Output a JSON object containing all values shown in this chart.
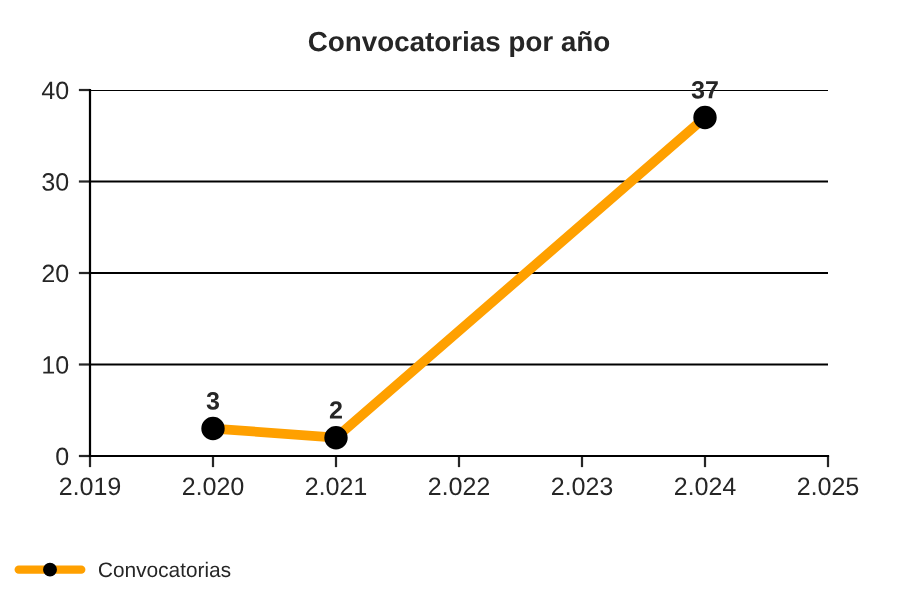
{
  "chart_data": {
    "type": "line",
    "title": "Convocatorias por año",
    "x": [
      2020,
      2021,
      2024
    ],
    "series": [
      {
        "name": "Convocatorias",
        "color": "#ffa000",
        "values": [
          3,
          2,
          37
        ]
      }
    ],
    "xlim": [
      2019,
      2025
    ],
    "xticks": [
      {
        "value": 2019,
        "label": "2.019"
      },
      {
        "value": 2020,
        "label": "2.020"
      },
      {
        "value": 2021,
        "label": "2.021"
      },
      {
        "value": 2022,
        "label": "2.022"
      },
      {
        "value": 2023,
        "label": "2.023"
      },
      {
        "value": 2024,
        "label": "2.024"
      },
      {
        "value": 2025,
        "label": "2.025"
      }
    ],
    "ylim": [
      0,
      40
    ],
    "yticks": [
      0,
      10,
      20,
      30,
      40
    ],
    "grid": "y",
    "legend": "bottom left",
    "marker": "circle",
    "data_labels": true
  }
}
